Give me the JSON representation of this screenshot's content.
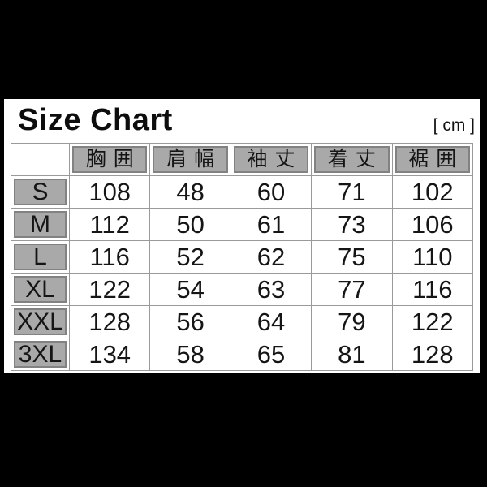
{
  "header": {
    "title": "Size Chart",
    "unit_label": "[ cm ]"
  },
  "colors": {
    "background": "#000000",
    "panel_background": "#ffffff",
    "cell_gray_fill": "#a9a9a9",
    "cell_gray_border": "#828282",
    "grid_line": "#9a9a9a",
    "text": "#151515"
  },
  "chart_data": {
    "type": "table",
    "title": "Size Chart",
    "unit": "cm",
    "unit_label": "[ cm ]",
    "corner_label": "",
    "columns": [
      "胸囲",
      "肩幅",
      "袖丈",
      "着丈",
      "裾囲"
    ],
    "rows": [
      {
        "size": "S",
        "values": [
          "108",
          "48",
          "60",
          "71",
          "102"
        ]
      },
      {
        "size": "M",
        "values": [
          "112",
          "50",
          "61",
          "73",
          "106"
        ]
      },
      {
        "size": "L",
        "values": [
          "116",
          "52",
          "62",
          "75",
          "110"
        ]
      },
      {
        "size": "XL",
        "values": [
          "122",
          "54",
          "63",
          "77",
          "116"
        ]
      },
      {
        "size": "XXL",
        "values": [
          "128",
          "56",
          "64",
          "79",
          "122"
        ]
      },
      {
        "size": "3XL",
        "values": [
          "134",
          "58",
          "65",
          "81",
          "128"
        ]
      }
    ]
  }
}
